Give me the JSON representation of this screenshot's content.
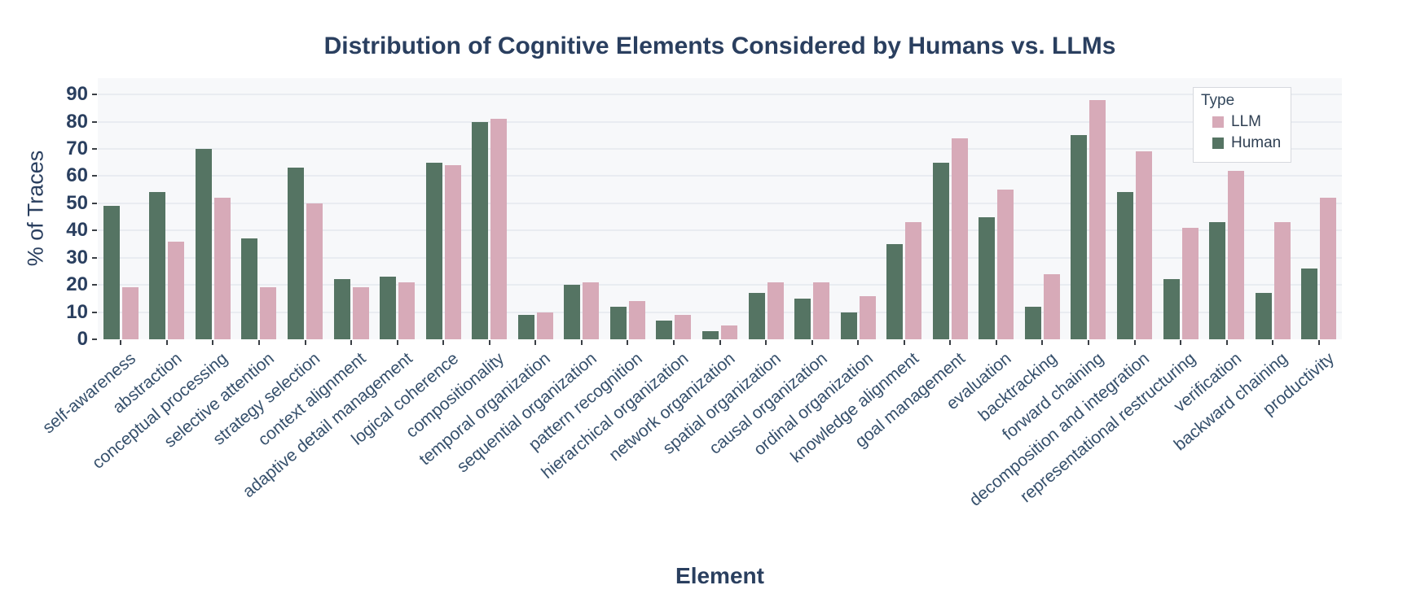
{
  "title": "Distribution of Cognitive Elements Considered by Humans vs. LLMs",
  "colors": {
    "human_bar": "#557463",
    "llm_bar": "#d7aab8",
    "plot_background": "#f7f8fa",
    "gridline": "#e9ecf1",
    "text": "#2a3f5f"
  },
  "chart_data": {
    "type": "bar",
    "title": "Distribution of Cognitive Elements Considered by Humans vs. LLMs",
    "xlabel": "Element",
    "ylabel": "% of Traces",
    "ylim": [
      0,
      96
    ],
    "yticks": [
      0,
      10,
      20,
      30,
      40,
      50,
      60,
      70,
      80,
      90
    ],
    "grid": true,
    "legend": {
      "title": "Type",
      "position": "top-right",
      "entries": [
        {
          "label": "LLM",
          "color": "#d7aab8"
        },
        {
          "label": "Human",
          "color": "#557463"
        }
      ]
    },
    "categories": [
      "self-awareness",
      "abstraction",
      "conceptual processing",
      "selective attention",
      "strategy selection",
      "context alignment",
      "adaptive detail management",
      "logical coherence",
      "compositionality",
      "temporal organization",
      "sequential organization",
      "pattern recognition",
      "hierarchical organization",
      "network organization",
      "spatial organization",
      "causal organization",
      "ordinal organization",
      "knowledge alignment",
      "goal management",
      "evaluation",
      "backtracking",
      "forward chaining",
      "decomposition and integration",
      "representational restructuring",
      "verification",
      "backward chaining",
      "productivity"
    ],
    "series": [
      {
        "name": "Human",
        "color": "#557463",
        "values": [
          49,
          54,
          70,
          37,
          63,
          22,
          23,
          65,
          80,
          9,
          20,
          12,
          7,
          3,
          17,
          15,
          10,
          35,
          65,
          45,
          12,
          75,
          54,
          22,
          43,
          17,
          26
        ]
      },
      {
        "name": "LLM",
        "color": "#d7aab8",
        "values": [
          19,
          36,
          52,
          19,
          50,
          19,
          21,
          64,
          81,
          10,
          21,
          14,
          9,
          5,
          21,
          21,
          16,
          43,
          74,
          55,
          24,
          88,
          69,
          41,
          62,
          43,
          52
        ]
      }
    ]
  }
}
